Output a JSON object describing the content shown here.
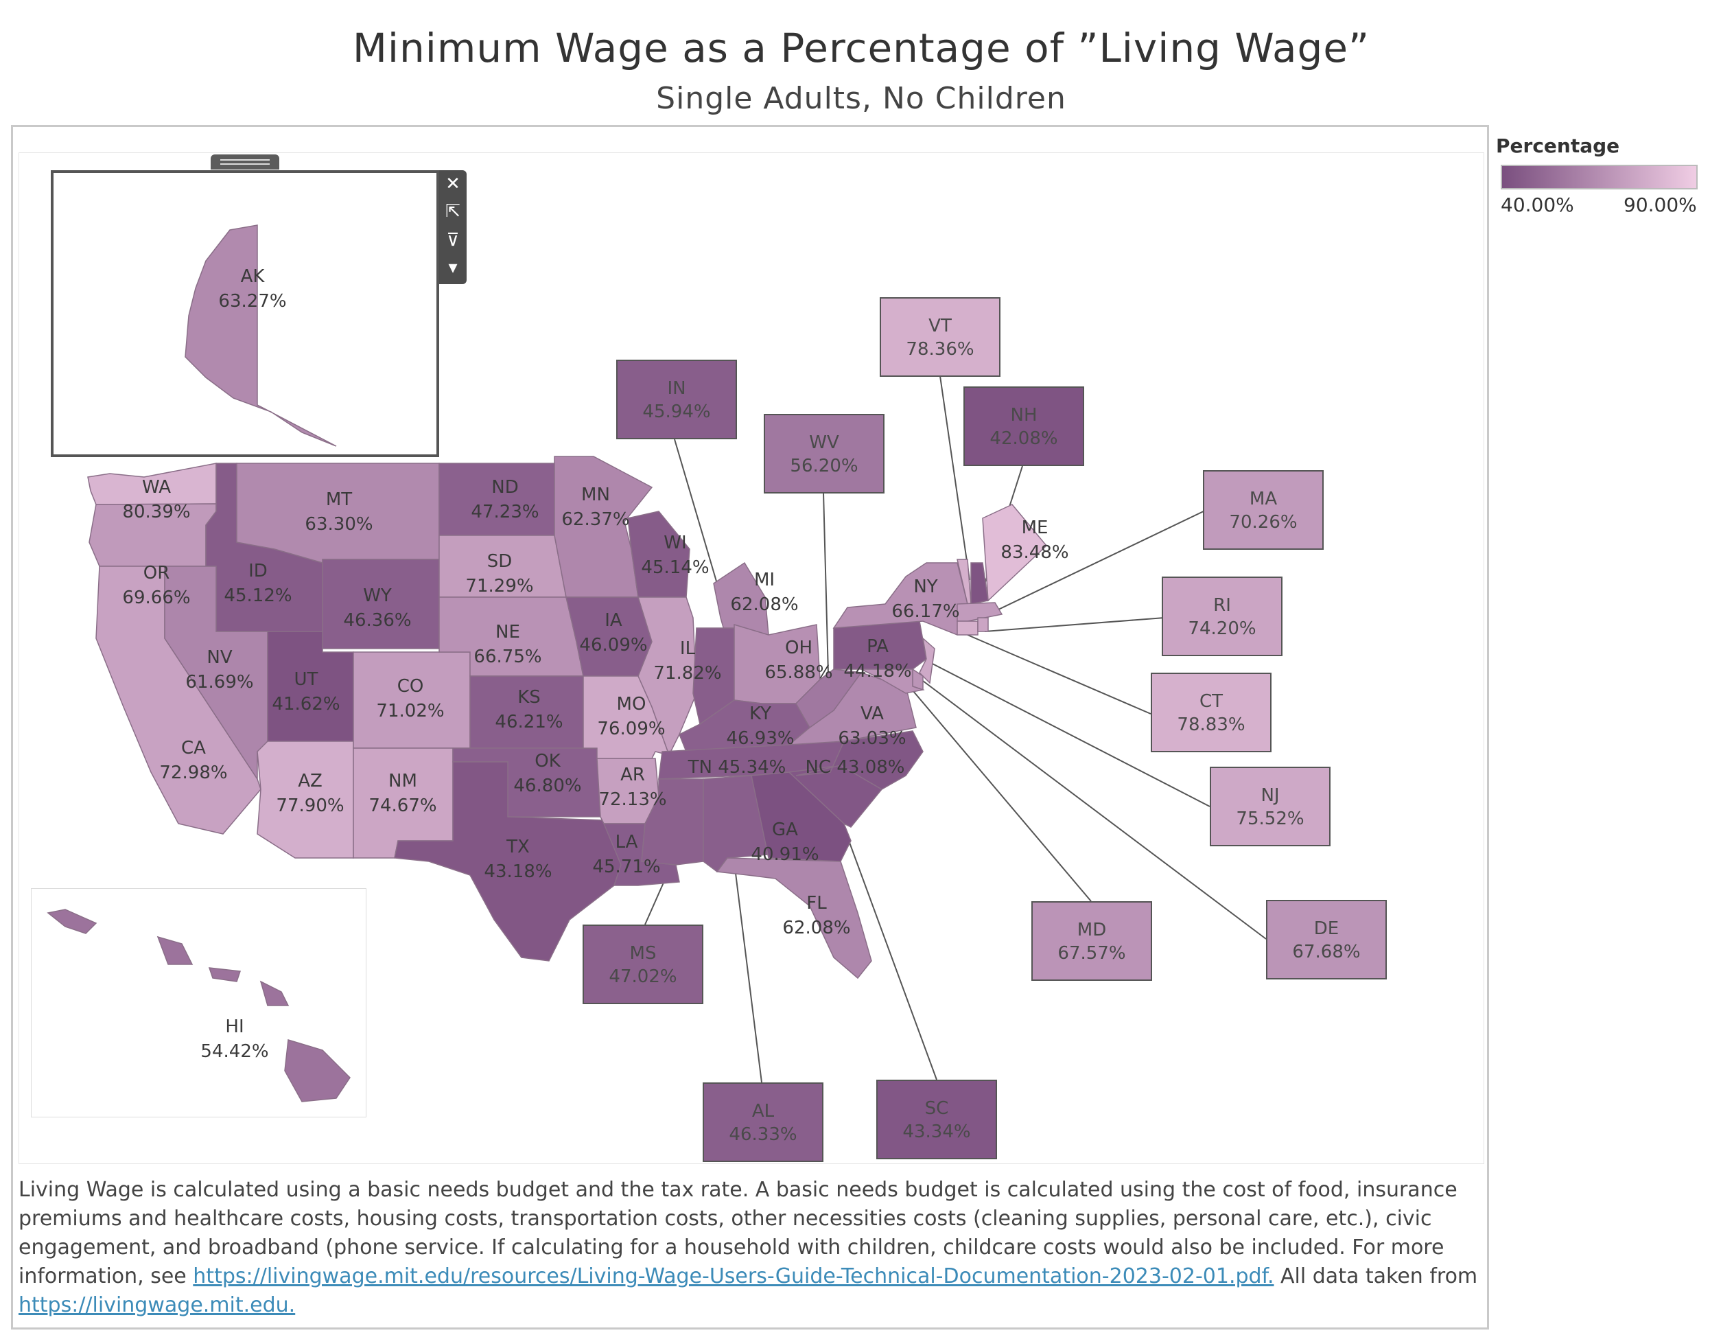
{
  "title": "Minimum Wage as a Percentage of ”Living Wage”",
  "subtitle": "Single Adults, No Children",
  "legend": {
    "title": "Percentage",
    "min_label": "40.00%",
    "max_label": "90.00%",
    "color_low": "#7a4f7f",
    "color_high": "#f0cde4"
  },
  "toolbar": {
    "close_icon": "✕",
    "popout_icon": "⇱",
    "filter_icon": "⊽",
    "menu_icon": "▾"
  },
  "states": {
    "AK": {
      "abbr": "AK",
      "value": "63.27%"
    },
    "HI": {
      "abbr": "HI",
      "value": "54.42%"
    },
    "WA": {
      "abbr": "WA",
      "value": "80.39%"
    },
    "OR": {
      "abbr": "OR",
      "value": "69.66%"
    },
    "CA": {
      "abbr": "CA",
      "value": "72.98%"
    },
    "ID": {
      "abbr": "ID",
      "value": "45.12%"
    },
    "NV": {
      "abbr": "NV",
      "value": "61.69%"
    },
    "MT": {
      "abbr": "MT",
      "value": "63.30%"
    },
    "WY": {
      "abbr": "WY",
      "value": "46.36%"
    },
    "UT": {
      "abbr": "UT",
      "value": "41.62%"
    },
    "AZ": {
      "abbr": "AZ",
      "value": "77.90%"
    },
    "CO": {
      "abbr": "CO",
      "value": "71.02%"
    },
    "NM": {
      "abbr": "NM",
      "value": "74.67%"
    },
    "ND": {
      "abbr": "ND",
      "value": "47.23%"
    },
    "SD": {
      "abbr": "SD",
      "value": "71.29%"
    },
    "NE": {
      "abbr": "NE",
      "value": "66.75%"
    },
    "KS": {
      "abbr": "KS",
      "value": "46.21%"
    },
    "OK": {
      "abbr": "OK",
      "value": "46.80%"
    },
    "TX": {
      "abbr": "TX",
      "value": "43.18%"
    },
    "MN": {
      "abbr": "MN",
      "value": "62.37%"
    },
    "IA": {
      "abbr": "IA",
      "value": "46.09%"
    },
    "MO": {
      "abbr": "MO",
      "value": "76.09%"
    },
    "AR": {
      "abbr": "AR",
      "value": "72.13%"
    },
    "LA": {
      "abbr": "LA",
      "value": "45.71%"
    },
    "WI": {
      "abbr": "WI",
      "value": "45.14%"
    },
    "IL": {
      "abbr": "IL",
      "value": "71.82%"
    },
    "MI": {
      "abbr": "MI",
      "value": "62.08%"
    },
    "OH": {
      "abbr": "OH",
      "value": "65.88%"
    },
    "KY": {
      "abbr": "KY",
      "value": "46.93%"
    },
    "TN": {
      "abbr": "TN",
      "value": "45.34%"
    },
    "GA": {
      "abbr": "GA",
      "value": "40.91%"
    },
    "FL": {
      "abbr": "FL",
      "value": "62.08%"
    },
    "NC": {
      "abbr": "NC",
      "value": "43.08%"
    },
    "VA": {
      "abbr": "VA",
      "value": "63.03%"
    },
    "PA": {
      "abbr": "PA",
      "value": "44.18%"
    },
    "NY": {
      "abbr": "NY",
      "value": "66.17%"
    },
    "ME": {
      "abbr": "ME",
      "value": "83.48%"
    },
    "IN": {
      "abbr": "IN",
      "value": "45.94%"
    },
    "WV": {
      "abbr": "WV",
      "value": "56.20%"
    },
    "VT": {
      "abbr": "VT",
      "value": "78.36%"
    },
    "NH": {
      "abbr": "NH",
      "value": "42.08%"
    },
    "MA": {
      "abbr": "MA",
      "value": "70.26%"
    },
    "RI": {
      "abbr": "RI",
      "value": "74.20%"
    },
    "CT": {
      "abbr": "CT",
      "value": "78.83%"
    },
    "NJ": {
      "abbr": "NJ",
      "value": "75.52%"
    },
    "MD": {
      "abbr": "MD",
      "value": "67.57%"
    },
    "DE": {
      "abbr": "DE",
      "value": "67.68%"
    },
    "MS": {
      "abbr": "MS",
      "value": "47.02%"
    },
    "AL": {
      "abbr": "AL",
      "value": "46.33%"
    },
    "SC": {
      "abbr": "SC",
      "value": "43.34%"
    }
  },
  "footnote": {
    "text1": "Living Wage is calculated using a basic needs budget and the tax rate. A basic needs budget is calculated using the cost of food, insurance premiums and healthcare costs, housing costs, transportation costs, other necessities costs (cleaning supplies, personal care, etc.), civic engagement, and broadband (phone service. If calculating for a household with children, childcare costs would also be included. For more information, see ",
    "link1": "https://livingwage.mit.edu/resources/Living-Wage-Users-Guide-Technical-Documentation-2023-02-01.pdf.",
    "text2": " All data taken from ",
    "link2": "https://livingwage.mit.edu."
  }
}
